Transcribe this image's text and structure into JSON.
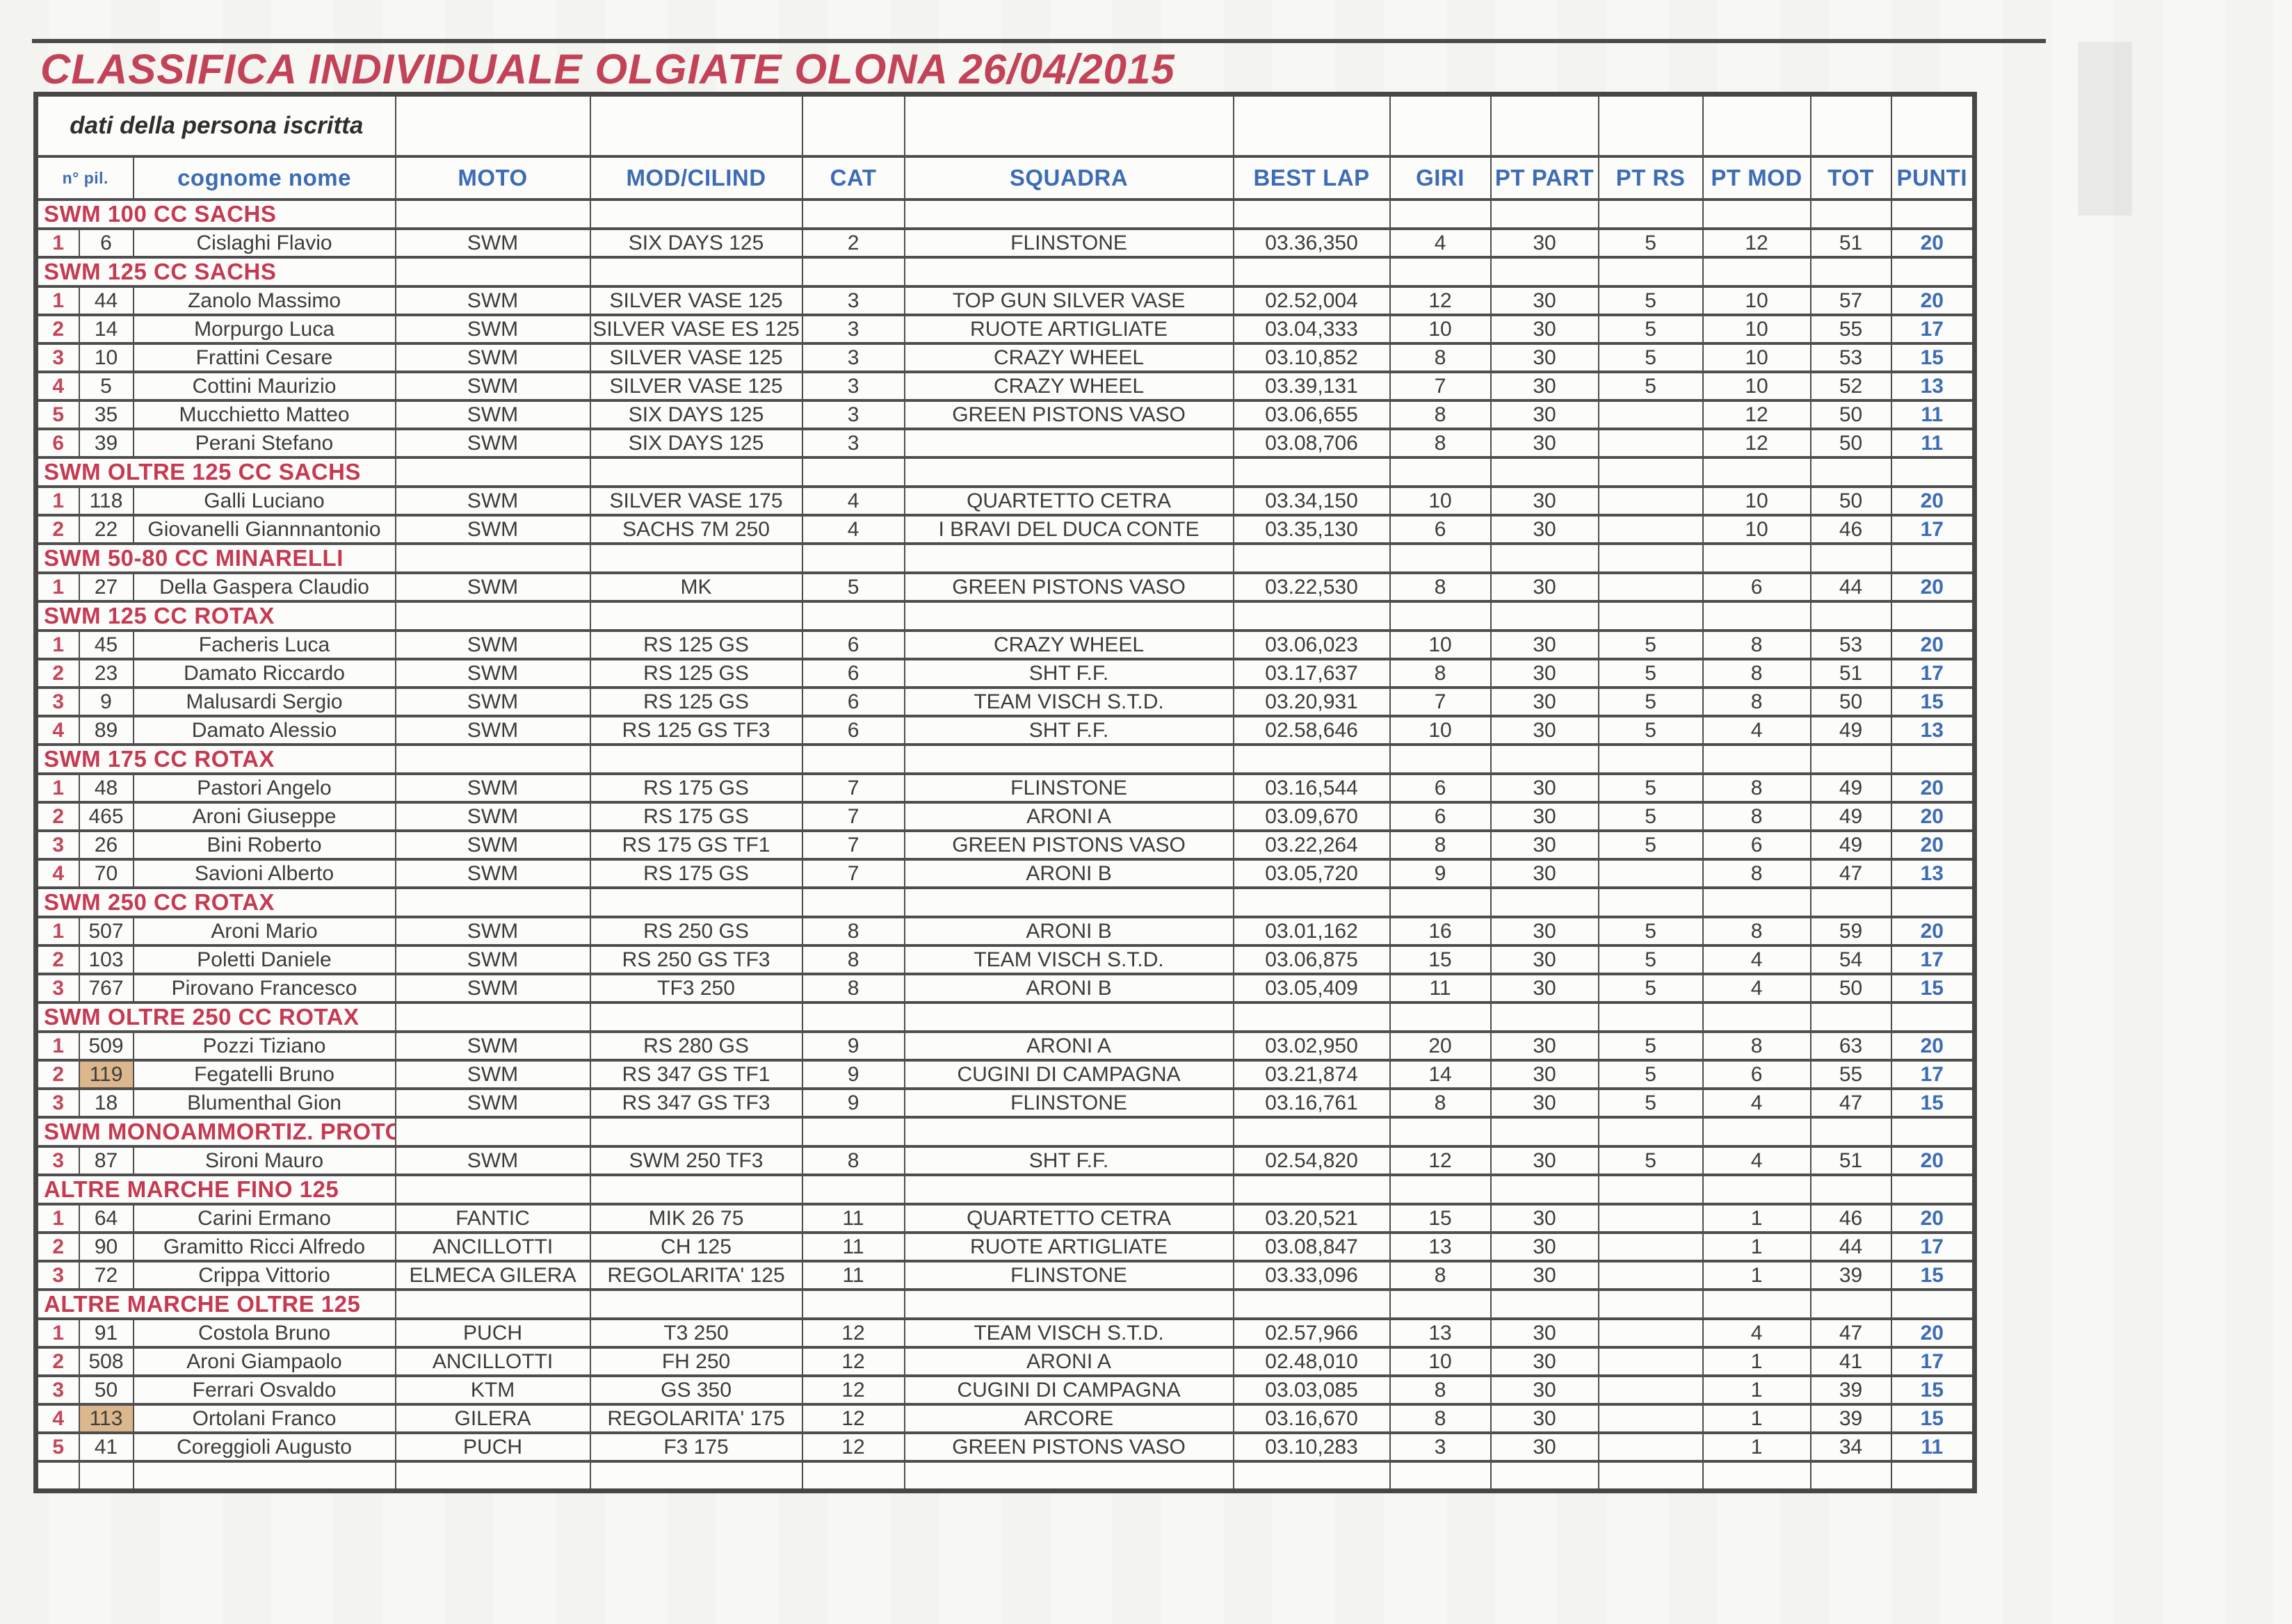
{
  "page": {
    "title": "CLASSIFICA INDIVIDUALE OLGIATE OLONA 26/04/2015"
  },
  "colors": {
    "title_red": "#c24357",
    "section_red": "#c53a52",
    "header_blue": "#3d6cb4",
    "punti_blue": "#3d6cb4",
    "position_red": "#c5455a",
    "highlight_tan": "#dcb78c",
    "border_gray": "#4e4e4e",
    "data_gray": "#3c3c3c"
  },
  "table": {
    "group_header": "dati della persona iscritta",
    "columns": [
      "n° pil.",
      "cognome nome",
      "MOTO",
      "MOD/CILIND",
      "CAT",
      "SQUADRA",
      "BEST LAP",
      "GIRI",
      "PT PART",
      "PT RS",
      "PT MOD",
      "TOT",
      "PUNTI"
    ],
    "sections": [
      {
        "name": "SWM 100 CC SACHS",
        "rows": [
          {
            "pos": "1",
            "hl": false,
            "cells": [
              "6",
              "Cislaghi Flavio",
              "SWM",
              "SIX DAYS 125",
              "2",
              "FLINSTONE",
              "03.36,350",
              "4",
              "30",
              "5",
              "12",
              "51",
              "20"
            ]
          }
        ]
      },
      {
        "name": "SWM 125 CC SACHS",
        "rows": [
          {
            "pos": "1",
            "hl": false,
            "cells": [
              "44",
              "Zanolo Massimo",
              "SWM",
              "SILVER VASE 125",
              "3",
              "TOP GUN SILVER VASE",
              "02.52,004",
              "12",
              "30",
              "5",
              "10",
              "57",
              "20"
            ]
          },
          {
            "pos": "2",
            "hl": false,
            "cells": [
              "14",
              "Morpurgo Luca",
              "SWM",
              "SILVER VASE ES 125",
              "3",
              "RUOTE ARTIGLIATE",
              "03.04,333",
              "10",
              "30",
              "5",
              "10",
              "55",
              "17"
            ]
          },
          {
            "pos": "3",
            "hl": false,
            "cells": [
              "10",
              "Frattini Cesare",
              "SWM",
              "SILVER VASE 125",
              "3",
              "CRAZY WHEEL",
              "03.10,852",
              "8",
              "30",
              "5",
              "10",
              "53",
              "15"
            ]
          },
          {
            "pos": "4",
            "hl": false,
            "cells": [
              "5",
              "Cottini Maurizio",
              "SWM",
              "SILVER VASE 125",
              "3",
              "CRAZY WHEEL",
              "03.39,131",
              "7",
              "30",
              "5",
              "10",
              "52",
              "13"
            ]
          },
          {
            "pos": "5",
            "hl": false,
            "cells": [
              "35",
              "Mucchietto Matteo",
              "SWM",
              "SIX DAYS 125",
              "3",
              "GREEN PISTONS VASO",
              "03.06,655",
              "8",
              "30",
              "",
              "12",
              "50",
              "11"
            ]
          },
          {
            "pos": "6",
            "hl": false,
            "cells": [
              "39",
              "Perani Stefano",
              "SWM",
              "SIX DAYS 125",
              "3",
              "",
              "03.08,706",
              "8",
              "30",
              "",
              "12",
              "50",
              "11"
            ]
          }
        ]
      },
      {
        "name": "SWM OLTRE 125 CC SACHS",
        "rows": [
          {
            "pos": "1",
            "hl": false,
            "cells": [
              "118",
              "Galli Luciano",
              "SWM",
              "SILVER VASE 175",
              "4",
              "QUARTETTO CETRA",
              "03.34,150",
              "10",
              "30",
              "",
              "10",
              "50",
              "20"
            ]
          },
          {
            "pos": "2",
            "hl": false,
            "cells": [
              "22",
              "Giovanelli Giannnantonio",
              "SWM",
              "SACHS 7M 250",
              "4",
              "I BRAVI DEL DUCA CONTE",
              "03.35,130",
              "6",
              "30",
              "",
              "10",
              "46",
              "17"
            ]
          }
        ]
      },
      {
        "name": "SWM 50-80 CC MINARELLI",
        "rows": [
          {
            "pos": "1",
            "hl": false,
            "cells": [
              "27",
              "Della Gaspera Claudio",
              "SWM",
              "MK",
              "5",
              "GREEN PISTONS VASO",
              "03.22,530",
              "8",
              "30",
              "",
              "6",
              "44",
              "20"
            ]
          }
        ]
      },
      {
        "name": "SWM 125 CC ROTAX",
        "rows": [
          {
            "pos": "1",
            "hl": false,
            "cells": [
              "45",
              "Facheris Luca",
              "SWM",
              "RS 125 GS",
              "6",
              "CRAZY WHEEL",
              "03.06,023",
              "10",
              "30",
              "5",
              "8",
              "53",
              "20"
            ]
          },
          {
            "pos": "2",
            "hl": false,
            "cells": [
              "23",
              "Damato Riccardo",
              "SWM",
              "RS 125 GS",
              "6",
              "SHT F.F.",
              "03.17,637",
              "8",
              "30",
              "5",
              "8",
              "51",
              "17"
            ]
          },
          {
            "pos": "3",
            "hl": false,
            "cells": [
              "9",
              "Malusardi Sergio",
              "SWM",
              "RS 125 GS",
              "6",
              "TEAM VISCH S.T.D.",
              "03.20,931",
              "7",
              "30",
              "5",
              "8",
              "50",
              "15"
            ]
          },
          {
            "pos": "4",
            "hl": false,
            "cells": [
              "89",
              "Damato Alessio",
              "SWM",
              "RS 125 GS TF3",
              "6",
              "SHT F.F.",
              "02.58,646",
              "10",
              "30",
              "5",
              "4",
              "49",
              "13"
            ]
          }
        ]
      },
      {
        "name": "SWM 175 CC ROTAX",
        "rows": [
          {
            "pos": "1",
            "hl": false,
            "cells": [
              "48",
              "Pastori Angelo",
              "SWM",
              "RS 175 GS",
              "7",
              "FLINSTONE",
              "03.16,544",
              "6",
              "30",
              "5",
              "8",
              "49",
              "20"
            ]
          },
          {
            "pos": "2",
            "hl": false,
            "cells": [
              "465",
              "Aroni Giuseppe",
              "SWM",
              "RS 175 GS",
              "7",
              "ARONI A",
              "03.09,670",
              "6",
              "30",
              "5",
              "8",
              "49",
              "20"
            ]
          },
          {
            "pos": "3",
            "hl": false,
            "cells": [
              "26",
              "Bini Roberto",
              "SWM",
              "RS 175 GS TF1",
              "7",
              "GREEN PISTONS VASO",
              "03.22,264",
              "8",
              "30",
              "5",
              "6",
              "49",
              "20"
            ]
          },
          {
            "pos": "4",
            "hl": false,
            "cells": [
              "70",
              "Savioni Alberto",
              "SWM",
              "RS 175 GS",
              "7",
              "ARONI B",
              "03.05,720",
              "9",
              "30",
              "",
              "8",
              "47",
              "13"
            ]
          }
        ]
      },
      {
        "name": "SWM 250 CC ROTAX",
        "rows": [
          {
            "pos": "1",
            "hl": false,
            "cells": [
              "507",
              "Aroni Mario",
              "SWM",
              "RS 250 GS",
              "8",
              "ARONI B",
              "03.01,162",
              "16",
              "30",
              "5",
              "8",
              "59",
              "20"
            ]
          },
          {
            "pos": "2",
            "hl": false,
            "cells": [
              "103",
              "Poletti Daniele",
              "SWM",
              "RS 250 GS TF3",
              "8",
              "TEAM VISCH S.T.D.",
              "03.06,875",
              "15",
              "30",
              "5",
              "4",
              "54",
              "17"
            ]
          },
          {
            "pos": "3",
            "hl": false,
            "cells": [
              "767",
              "Pirovano Francesco",
              "SWM",
              "TF3 250",
              "8",
              "ARONI B",
              "03.05,409",
              "11",
              "30",
              "5",
              "4",
              "50",
              "15"
            ]
          }
        ]
      },
      {
        "name": "SWM OLTRE 250 CC ROTAX",
        "rows": [
          {
            "pos": "1",
            "hl": false,
            "cells": [
              "509",
              "Pozzi Tiziano",
              "SWM",
              "RS 280 GS",
              "9",
              "ARONI A",
              "03.02,950",
              "20",
              "30",
              "5",
              "8",
              "63",
              "20"
            ]
          },
          {
            "pos": "2",
            "hl": true,
            "cells": [
              "119",
              "Fegatelli Bruno",
              "SWM",
              "RS 347 GS TF1",
              "9",
              "CUGINI DI CAMPAGNA",
              "03.21,874",
              "14",
              "30",
              "5",
              "6",
              "55",
              "17"
            ]
          },
          {
            "pos": "3",
            "hl": false,
            "cells": [
              "18",
              "Blumenthal Gion",
              "SWM",
              "RS 347 GS TF3",
              "9",
              "FLINSTONE",
              "03.16,761",
              "8",
              "30",
              "5",
              "4",
              "47",
              "15"
            ]
          }
        ]
      },
      {
        "name": "SWM MONOAMMORTIZ. PROTOTIPI",
        "rows": [
          {
            "pos": "3",
            "hl": false,
            "cells": [
              "87",
              "Sironi Mauro",
              "SWM",
              "SWM 250 TF3",
              "8",
              "SHT F.F.",
              "02.54,820",
              "12",
              "30",
              "5",
              "4",
              "51",
              "20"
            ]
          }
        ]
      },
      {
        "name": "ALTRE MARCHE FINO 125",
        "rows": [
          {
            "pos": "1",
            "hl": false,
            "cells": [
              "64",
              "Carini Ermano",
              "FANTIC",
              "MIK 26 75",
              "11",
              "QUARTETTO CETRA",
              "03.20,521",
              "15",
              "30",
              "",
              "1",
              "46",
              "20"
            ]
          },
          {
            "pos": "2",
            "hl": false,
            "cells": [
              "90",
              "Gramitto Ricci Alfredo",
              "ANCILLOTTI",
              "CH 125",
              "11",
              "RUOTE ARTIGLIATE",
              "03.08,847",
              "13",
              "30",
              "",
              "1",
              "44",
              "17"
            ]
          },
          {
            "pos": "3",
            "hl": false,
            "cells": [
              "72",
              "Crippa Vittorio",
              "ELMECA GILERA",
              "REGOLARITA' 125",
              "11",
              "FLINSTONE",
              "03.33,096",
              "8",
              "30",
              "",
              "1",
              "39",
              "15"
            ]
          }
        ]
      },
      {
        "name": "ALTRE MARCHE OLTRE 125",
        "rows": [
          {
            "pos": "1",
            "hl": false,
            "cells": [
              "91",
              "Costola Bruno",
              "PUCH",
              "T3 250",
              "12",
              "TEAM VISCH S.T.D.",
              "02.57,966",
              "13",
              "30",
              "",
              "4",
              "47",
              "20"
            ]
          },
          {
            "pos": "2",
            "hl": false,
            "cells": [
              "508",
              "Aroni Giampaolo",
              "ANCILLOTTI",
              "FH 250",
              "12",
              "ARONI A",
              "02.48,010",
              "10",
              "30",
              "",
              "1",
              "41",
              "17"
            ]
          },
          {
            "pos": "3",
            "hl": false,
            "cells": [
              "50",
              "Ferrari Osvaldo",
              "KTM",
              "GS 350",
              "12",
              "CUGINI DI CAMPAGNA",
              "03.03,085",
              "8",
              "30",
              "",
              "1",
              "39",
              "15"
            ]
          },
          {
            "pos": "4",
            "hl": true,
            "cells": [
              "113",
              "Ortolani Franco",
              "GILERA",
              "REGOLARITA' 175",
              "12",
              "ARCORE",
              "03.16,670",
              "8",
              "30",
              "",
              "1",
              "39",
              "15"
            ]
          },
          {
            "pos": "5",
            "hl": false,
            "cells": [
              "41",
              "Coreggioli Augusto",
              "PUCH",
              "F3 175",
              "12",
              "GREEN PISTONS VASO",
              "03.10,283",
              "3",
              "30",
              "",
              "1",
              "34",
              "11"
            ]
          }
        ]
      }
    ]
  }
}
